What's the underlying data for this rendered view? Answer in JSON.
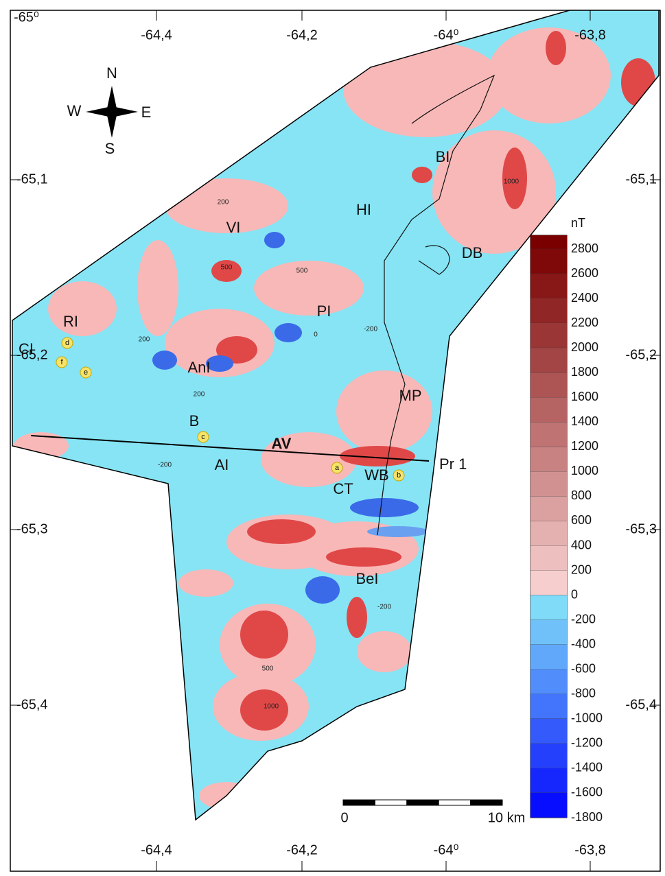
{
  "map": {
    "corner_label": "-65⁰",
    "lon_labels_top": [
      "-64,4",
      "-64,2",
      "-64⁰",
      "-63,8"
    ],
    "lon_labels_bottom": [
      "-64,4",
      "-64,2",
      "-64⁰",
      "-63,8"
    ],
    "lat_labels_left": [
      "-65,1",
      "-65,2",
      "-65,3",
      "-65,4"
    ],
    "lat_labels_right": [
      "-65,1",
      "-65,2",
      "-65,3",
      "-65,4"
    ],
    "compass": [
      "N",
      "E",
      "S",
      "W"
    ],
    "place_labels": [
      "VI",
      "HI",
      "BI",
      "DB",
      "PI",
      "RI",
      "CI",
      "AnI",
      "MP",
      "B",
      "AV",
      "AI",
      "CT",
      "WB",
      "BeI"
    ],
    "profile_label": "Pr 1",
    "site_markers": [
      "a",
      "b",
      "c",
      "d",
      "e",
      "f"
    ],
    "contour_labels": [
      "200",
      "-200",
      "500",
      "200",
      "-200",
      "500",
      "1000",
      "200",
      "-200",
      "500",
      "1000",
      "0"
    ],
    "scale_bar": {
      "start": "0",
      "end": "10 km"
    },
    "colorbar": {
      "unit": "nT",
      "ticks": [
        2800,
        2600,
        2400,
        2200,
        2000,
        1800,
        1600,
        1400,
        1200,
        1000,
        800,
        600,
        400,
        200,
        0,
        -200,
        -400,
        -600,
        -800,
        -1000,
        -1200,
        -1400,
        -1600,
        -1800
      ]
    }
  }
}
